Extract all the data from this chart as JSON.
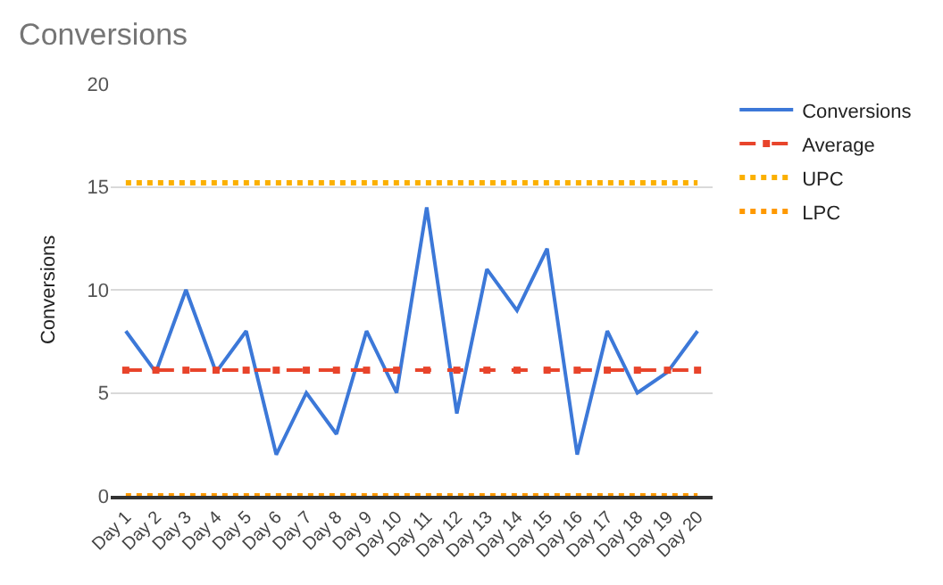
{
  "chart_data": {
    "type": "line",
    "title": "Conversions",
    "ylabel": "Conversions",
    "categories": [
      "Day 1",
      "Day 2",
      "Day 3",
      "Day 4",
      "Day 5",
      "Day 6",
      "Day 7",
      "Day 8",
      "Day 9",
      "Day 10",
      "Day 11",
      "Day 12",
      "Day 13",
      "Day 14",
      "Day 15",
      "Day 16",
      "Day 17",
      "Day 18",
      "Day 19",
      "Day 20"
    ],
    "series": [
      {
        "name": "Conversions",
        "color": "#3c78d8",
        "line_style": "solid",
        "marker": "none",
        "values": [
          8,
          6,
          10,
          6,
          8,
          2,
          5,
          3,
          8,
          5,
          14,
          4,
          11,
          9,
          12,
          2,
          8,
          5,
          6,
          8
        ]
      },
      {
        "name": "Average",
        "color": "#e8442b",
        "line_style": "dashed",
        "marker": "square",
        "values": [
          6.1,
          6.1,
          6.1,
          6.1,
          6.1,
          6.1,
          6.1,
          6.1,
          6.1,
          6.1,
          6.1,
          6.1,
          6.1,
          6.1,
          6.1,
          6.1,
          6.1,
          6.1,
          6.1,
          6.1
        ]
      },
      {
        "name": "UPC",
        "color": "#fbb000",
        "line_style": "dotted",
        "marker": "none",
        "values": [
          15.2,
          15.2,
          15.2,
          15.2,
          15.2,
          15.2,
          15.2,
          15.2,
          15.2,
          15.2,
          15.2,
          15.2,
          15.2,
          15.2,
          15.2,
          15.2,
          15.2,
          15.2,
          15.2,
          15.2
        ]
      },
      {
        "name": "LPC",
        "color": "#ff9900",
        "line_style": "dotted",
        "marker": "none",
        "values": [
          0,
          0,
          0,
          0,
          0,
          0,
          0,
          0,
          0,
          0,
          0,
          0,
          0,
          0,
          0,
          0,
          0,
          0,
          0,
          0
        ]
      }
    ],
    "ylim": [
      0,
      20
    ],
    "yticks": [
      0,
      5,
      10,
      15,
      20
    ],
    "grid": "y",
    "legend": "top right"
  }
}
